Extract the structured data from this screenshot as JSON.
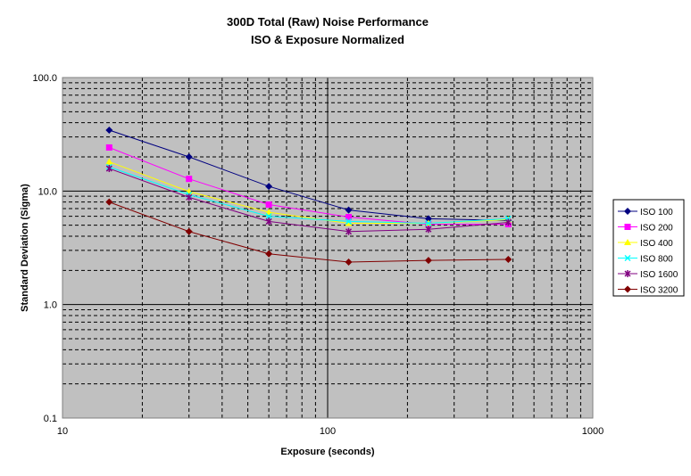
{
  "chart_data": {
    "type": "line",
    "title": "300D Total (Raw) Noise Performance",
    "subtitle": "ISO & Exposure Normalized",
    "xlabel": "Exposure (seconds)",
    "ylabel": "Standard Deviation (Sigma)",
    "xscale": "log",
    "yscale": "log",
    "xlim": [
      10,
      1000
    ],
    "ylim": [
      0.1,
      100
    ],
    "x_ticks": [
      "10",
      "100",
      "1000"
    ],
    "y_ticks": [
      "0.1",
      "1.0",
      "10.0",
      "100.0"
    ],
    "grid": true,
    "legend_position": "right",
    "x": [
      15,
      30,
      60,
      120,
      240,
      480
    ],
    "series": [
      {
        "name": "ISO 100",
        "color": "#000080",
        "marker": "diamond",
        "values": [
          34.4,
          20.0,
          11.0,
          6.8,
          5.7,
          5.5
        ]
      },
      {
        "name": "ISO 200",
        "color": "#ff00ff",
        "marker": "square",
        "values": [
          24.2,
          12.8,
          7.6,
          5.9,
          5.1,
          5.1
        ]
      },
      {
        "name": "ISO 400",
        "color": "#ffff00",
        "marker": "triangle",
        "values": [
          18.1,
          9.9,
          6.5,
          5.2,
          5.2,
          5.6
        ]
      },
      {
        "name": "ISO 800",
        "color": "#00ffff",
        "marker": "x",
        "values": [
          16.3,
          9.3,
          6.0,
          5.4,
          5.2,
          5.7
        ]
      },
      {
        "name": "ISO 1600",
        "color": "#800080",
        "marker": "star",
        "values": [
          15.8,
          8.8,
          5.4,
          4.4,
          4.6,
          5.3
        ]
      },
      {
        "name": "ISO 3200",
        "color": "#800000",
        "marker": "diamond",
        "values": [
          8.0,
          4.4,
          2.8,
          2.37,
          2.45,
          2.5
        ]
      }
    ]
  }
}
